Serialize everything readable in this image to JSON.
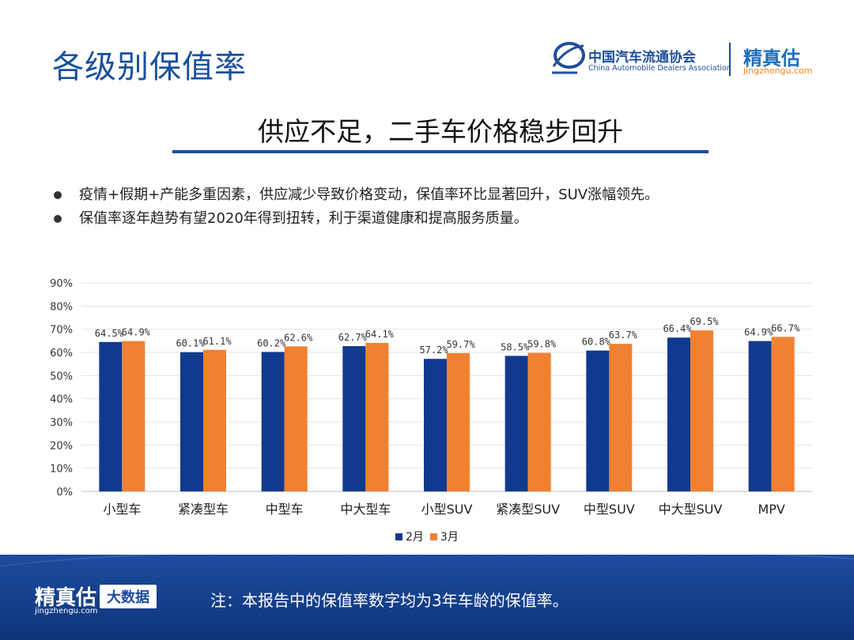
{
  "header": {
    "title": "各级别保值率",
    "logo_cada_cn": "中国汽车流通协会",
    "logo_cada_en": "China Automobile Dealers Association",
    "logo_jzg_cn": "精真估",
    "logo_jzg_url": "jingzhengu.com"
  },
  "subtitle": "供应不足，二手车价格稳步回升",
  "bullets": [
    "疫情+假期+产能多重因素，供应减少导致价格变动，保值率环比显著回升，SUV涨幅领先。",
    "保值率逐年趋势有望2020年得到扭转，利于渠道健康和提高服务质量。"
  ],
  "chart_data": {
    "type": "bar",
    "categories": [
      "小型车",
      "紧凑型车",
      "中型车",
      "中大型车",
      "小型SUV",
      "紧凑型SUV",
      "中型SUV",
      "中大型SUV",
      "MPV"
    ],
    "series": [
      {
        "name": "2月",
        "values": [
          64.5,
          60.1,
          60.2,
          62.7,
          57.2,
          58.5,
          60.8,
          66.4,
          64.9
        ],
        "labels": [
          "64.5%",
          "60.1%",
          "60.2%",
          "62.7%",
          "57.2%",
          "58.5%",
          "60.8%",
          "66.4%",
          "64.9%"
        ],
        "color": "#103a8e"
      },
      {
        "name": "3月",
        "values": [
          64.9,
          61.1,
          62.6,
          64.1,
          59.7,
          59.8,
          63.7,
          69.5,
          66.7
        ],
        "labels": [
          "64.9%",
          "61.1%",
          "62.6%",
          "64.1%",
          "59.7%",
          "59.8%",
          "63.7%",
          "69.5%",
          "66.7%"
        ],
        "color": "#ef8131"
      }
    ],
    "ylim": [
      0,
      90
    ],
    "yticks": [
      "0%",
      "10%",
      "20%",
      "30%",
      "40%",
      "50%",
      "60%",
      "70%",
      "80%",
      "90%"
    ],
    "grid": true,
    "legend": "bottom"
  },
  "footer": {
    "logo": "精真估",
    "url": "jingzhengu.com",
    "badge": "大数据",
    "note": "注：本报告中的保值率数字均为3年车龄的保值率。"
  }
}
